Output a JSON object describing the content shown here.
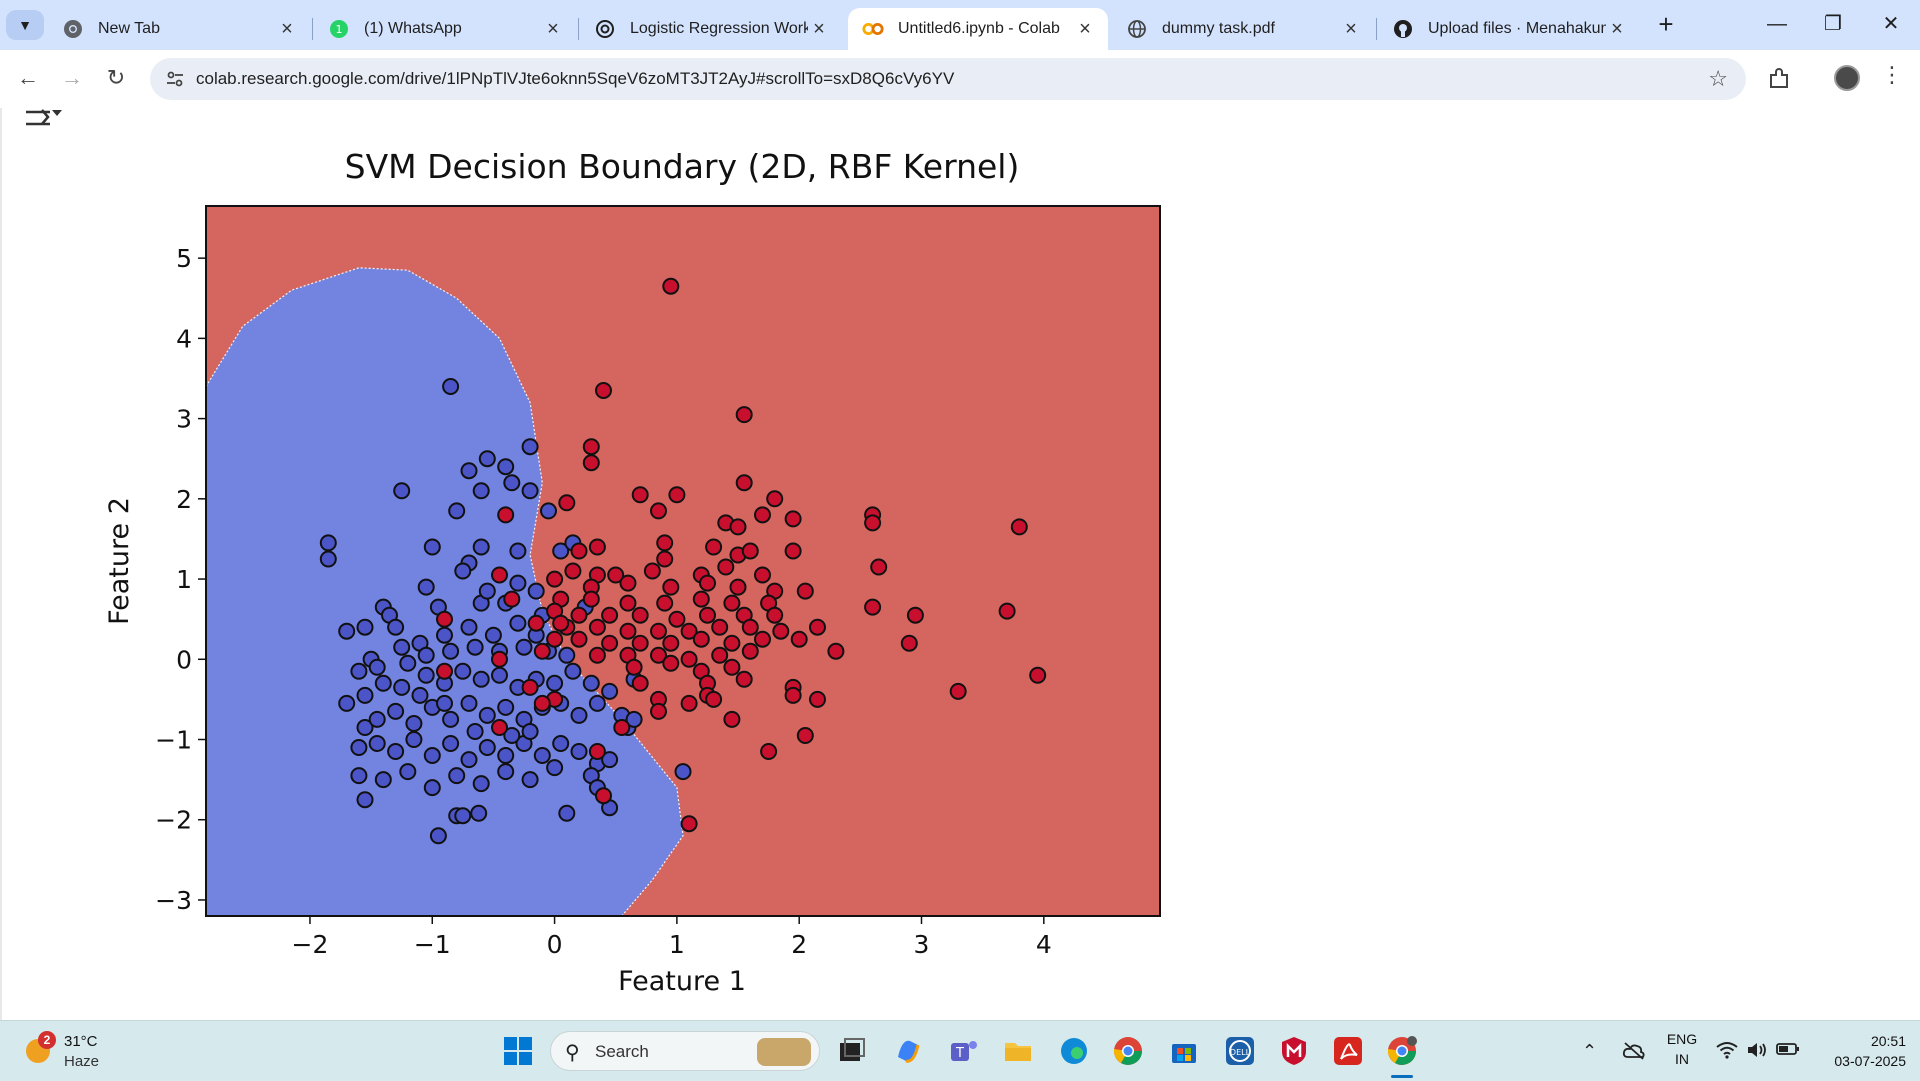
{
  "tabs": [
    {
      "title": "New Tab",
      "icon": "chrome-icon",
      "active": false
    },
    {
      "title": "(1) WhatsApp",
      "icon": "whatsapp-icon",
      "active": false
    },
    {
      "title": "Logistic Regression Workfl",
      "icon": "openai-icon",
      "active": false
    },
    {
      "title": "Untitled6.ipynb - Colab",
      "icon": "colab-icon",
      "active": true
    },
    {
      "title": "dummy task.pdf",
      "icon": "globe-icon",
      "active": false
    },
    {
      "title": "Upload files · Menahakuma",
      "icon": "github-icon",
      "active": false
    }
  ],
  "toolbar": {
    "url": "colab.research.google.com/drive/1lPNpTlVJte6oknn5SqeV6zoMT3JT2AyJ#scrollTo=sxD8Q6cVy6YV"
  },
  "chart_data": {
    "type": "scatter",
    "title": "SVM Decision Boundary (2D, RBF Kernel)",
    "xlabel": "Feature 1",
    "ylabel": "Feature 2",
    "xlim": [
      -2.85,
      4.95
    ],
    "ylim": [
      -3.2,
      5.65
    ],
    "xticks": [
      -2,
      -1,
      0,
      1,
      2,
      3,
      4
    ],
    "yticks": [
      -3,
      -2,
      -1,
      0,
      1,
      2,
      3,
      4,
      5
    ],
    "xtick_labels": [
      "−2",
      "−1",
      "0",
      "1",
      "2",
      "3",
      "4"
    ],
    "ytick_labels": [
      "−3",
      "−2",
      "−1",
      "0",
      "1",
      "2",
      "3",
      "4",
      "5"
    ],
    "background_regions": {
      "class_0": "#7384e0",
      "class_1": "#d5665f"
    },
    "boundary": [
      [
        -2.85,
        3.4
      ],
      [
        -2.55,
        4.15
      ],
      [
        -2.15,
        4.6
      ],
      [
        -1.6,
        4.88
      ],
      [
        -1.2,
        4.85
      ],
      [
        -0.8,
        4.5
      ],
      [
        -0.45,
        4.0
      ],
      [
        -0.2,
        3.2
      ],
      [
        -0.1,
        2.2
      ],
      [
        -0.2,
        1.3
      ],
      [
        -0.1,
        0.6
      ],
      [
        0.1,
        0.0
      ],
      [
        0.55,
        -0.75
      ],
      [
        1.0,
        -1.6
      ],
      [
        1.05,
        -2.2
      ],
      [
        0.8,
        -2.75
      ],
      [
        0.55,
        -3.2
      ]
    ],
    "boundary_bottom": [
      [
        -2.85,
        -3.0
      ],
      [
        -2.7,
        -3.2
      ]
    ],
    "series": [
      {
        "color": "#4b55c8",
        "points": [
          [
            -0.85,
            3.4
          ],
          [
            -1.25,
            2.1
          ],
          [
            -1.85,
            1.45
          ],
          [
            -1.85,
            1.25
          ],
          [
            -0.7,
            2.35
          ],
          [
            -0.55,
            2.5
          ],
          [
            -0.4,
            2.4
          ],
          [
            -0.2,
            2.65
          ],
          [
            -0.35,
            2.2
          ],
          [
            -0.2,
            2.1
          ],
          [
            -0.6,
            2.1
          ],
          [
            -0.8,
            1.85
          ],
          [
            -0.05,
            1.85
          ],
          [
            -0.6,
            1.4
          ],
          [
            -0.3,
            1.35
          ],
          [
            -1.0,
            1.4
          ],
          [
            -0.7,
            1.2
          ],
          [
            -0.75,
            1.1
          ],
          [
            0.05,
            1.35
          ],
          [
            -1.05,
            0.9
          ],
          [
            -1.4,
            0.65
          ],
          [
            -1.35,
            0.55
          ],
          [
            -1.7,
            0.35
          ],
          [
            -1.55,
            0.4
          ],
          [
            -1.3,
            0.4
          ],
          [
            -0.95,
            0.65
          ],
          [
            -0.6,
            0.7
          ],
          [
            -0.4,
            0.7
          ],
          [
            -0.3,
            0.45
          ],
          [
            -0.1,
            0.55
          ],
          [
            -0.15,
            0.3
          ],
          [
            -0.5,
            0.3
          ],
          [
            -0.7,
            0.4
          ],
          [
            -0.9,
            0.3
          ],
          [
            -1.1,
            0.2
          ],
          [
            -1.25,
            0.15
          ],
          [
            -1.5,
            0.0
          ],
          [
            -1.6,
            -0.15
          ],
          [
            -1.45,
            -0.1
          ],
          [
            -1.2,
            -0.05
          ],
          [
            -1.05,
            0.05
          ],
          [
            -0.85,
            0.1
          ],
          [
            -0.65,
            0.15
          ],
          [
            -0.45,
            0.1
          ],
          [
            -0.25,
            0.15
          ],
          [
            -0.05,
            0.1
          ],
          [
            0.1,
            0.05
          ],
          [
            -1.7,
            -0.55
          ],
          [
            -1.55,
            -0.45
          ],
          [
            -1.4,
            -0.3
          ],
          [
            -1.25,
            -0.35
          ],
          [
            -1.05,
            -0.2
          ],
          [
            -0.9,
            -0.3
          ],
          [
            -0.75,
            -0.15
          ],
          [
            -0.6,
            -0.25
          ],
          [
            -0.45,
            -0.2
          ],
          [
            -0.3,
            -0.35
          ],
          [
            -0.15,
            -0.25
          ],
          [
            0.0,
            -0.3
          ],
          [
            0.15,
            -0.15
          ],
          [
            0.3,
            -0.3
          ],
          [
            0.45,
            -0.4
          ],
          [
            -1.55,
            -0.85
          ],
          [
            -1.45,
            -0.75
          ],
          [
            -1.3,
            -0.65
          ],
          [
            -1.15,
            -0.8
          ],
          [
            -1.0,
            -0.6
          ],
          [
            -0.85,
            -0.75
          ],
          [
            -0.7,
            -0.55
          ],
          [
            -0.55,
            -0.7
          ],
          [
            -0.4,
            -0.6
          ],
          [
            -0.25,
            -0.75
          ],
          [
            -0.1,
            -0.6
          ],
          [
            0.05,
            -0.55
          ],
          [
            0.2,
            -0.7
          ],
          [
            0.35,
            -0.55
          ],
          [
            0.55,
            -0.7
          ],
          [
            -1.6,
            -1.1
          ],
          [
            -1.45,
            -1.05
          ],
          [
            -1.3,
            -1.15
          ],
          [
            -1.15,
            -1.0
          ],
          [
            -1.0,
            -1.2
          ],
          [
            -0.85,
            -1.05
          ],
          [
            -0.7,
            -1.25
          ],
          [
            -0.55,
            -1.1
          ],
          [
            -0.4,
            -1.2
          ],
          [
            -0.25,
            -1.05
          ],
          [
            -0.1,
            -1.2
          ],
          [
            0.05,
            -1.05
          ],
          [
            0.2,
            -1.15
          ],
          [
            0.35,
            -1.3
          ],
          [
            0.6,
            -0.85
          ],
          [
            -1.6,
            -1.45
          ],
          [
            -1.4,
            -1.5
          ],
          [
            -1.2,
            -1.4
          ],
          [
            -1.0,
            -1.6
          ],
          [
            -0.8,
            -1.45
          ],
          [
            -0.6,
            -1.55
          ],
          [
            -0.4,
            -1.4
          ],
          [
            -0.2,
            -1.5
          ],
          [
            0.0,
            -1.35
          ],
          [
            0.3,
            -1.45
          ],
          [
            0.45,
            -1.25
          ],
          [
            0.65,
            -0.75
          ],
          [
            1.05,
            -1.4
          ],
          [
            -1.55,
            -1.75
          ],
          [
            -0.95,
            -2.2
          ],
          [
            -0.8,
            -1.95
          ],
          [
            -0.75,
            -1.95
          ],
          [
            -0.62,
            -1.92
          ],
          [
            0.1,
            -1.92
          ],
          [
            0.45,
            -1.85
          ],
          [
            0.35,
            -1.6
          ],
          [
            0.65,
            -0.25
          ],
          [
            -0.2,
            -0.9
          ],
          [
            -0.65,
            -0.9
          ],
          [
            -0.35,
            -0.95
          ],
          [
            -0.9,
            -0.55
          ],
          [
            -1.1,
            -0.45
          ],
          [
            0.25,
            0.65
          ],
          [
            0.15,
            1.45
          ],
          [
            -0.55,
            0.85
          ],
          [
            -0.3,
            0.95
          ],
          [
            -0.15,
            0.85
          ]
        ]
      },
      {
        "color": "#c8102e",
        "points": [
          [
            0.95,
            4.65
          ],
          [
            0.4,
            3.35
          ],
          [
            1.55,
            3.05
          ],
          [
            0.3,
            2.65
          ],
          [
            0.3,
            2.45
          ],
          [
            1.55,
            2.2
          ],
          [
            0.7,
            2.05
          ],
          [
            1.0,
            2.05
          ],
          [
            1.8,
            2.0
          ],
          [
            0.1,
            1.95
          ],
          [
            0.85,
            1.85
          ],
          [
            1.7,
            1.8
          ],
          [
            1.95,
            1.75
          ],
          [
            2.6,
            1.8
          ],
          [
            2.6,
            1.7
          ],
          [
            1.4,
            1.7
          ],
          [
            1.5,
            1.65
          ],
          [
            3.8,
            1.65
          ],
          [
            0.9,
            1.45
          ],
          [
            1.3,
            1.4
          ],
          [
            0.35,
            1.4
          ],
          [
            0.2,
            1.35
          ],
          [
            0.9,
            1.25
          ],
          [
            1.5,
            1.3
          ],
          [
            1.6,
            1.35
          ],
          [
            1.95,
            1.35
          ],
          [
            2.65,
            1.15
          ],
          [
            0.15,
            1.1
          ],
          [
            0.35,
            1.05
          ],
          [
            0.5,
            1.05
          ],
          [
            0.8,
            1.1
          ],
          [
            1.2,
            1.05
          ],
          [
            1.4,
            1.15
          ],
          [
            1.7,
            1.05
          ],
          [
            0.0,
            1.0
          ],
          [
            0.3,
            0.9
          ],
          [
            0.6,
            0.95
          ],
          [
            0.95,
            0.9
          ],
          [
            1.25,
            0.95
          ],
          [
            1.5,
            0.9
          ],
          [
            1.8,
            0.85
          ],
          [
            2.05,
            0.85
          ],
          [
            -0.45,
            1.05
          ],
          [
            0.05,
            0.75
          ],
          [
            0.3,
            0.75
          ],
          [
            0.6,
            0.7
          ],
          [
            0.9,
            0.7
          ],
          [
            1.2,
            0.75
          ],
          [
            1.45,
            0.7
          ],
          [
            1.75,
            0.7
          ],
          [
            2.6,
            0.65
          ],
          [
            3.7,
            0.6
          ],
          [
            2.95,
            0.55
          ],
          [
            0.0,
            0.6
          ],
          [
            0.2,
            0.55
          ],
          [
            0.45,
            0.55
          ],
          [
            0.7,
            0.55
          ],
          [
            1.0,
            0.5
          ],
          [
            1.25,
            0.55
          ],
          [
            1.55,
            0.55
          ],
          [
            1.8,
            0.55
          ],
          [
            0.1,
            0.4
          ],
          [
            0.35,
            0.4
          ],
          [
            0.6,
            0.35
          ],
          [
            0.85,
            0.35
          ],
          [
            1.1,
            0.35
          ],
          [
            1.35,
            0.4
          ],
          [
            1.6,
            0.4
          ],
          [
            1.85,
            0.35
          ],
          [
            2.15,
            0.4
          ],
          [
            0.2,
            0.25
          ],
          [
            0.45,
            0.2
          ],
          [
            0.7,
            0.2
          ],
          [
            0.95,
            0.2
          ],
          [
            1.2,
            0.25
          ],
          [
            1.45,
            0.2
          ],
          [
            1.7,
            0.25
          ],
          [
            2.0,
            0.25
          ],
          [
            2.9,
            0.2
          ],
          [
            0.35,
            0.05
          ],
          [
            0.6,
            0.05
          ],
          [
            0.85,
            0.05
          ],
          [
            1.1,
            0.0
          ],
          [
            1.35,
            0.05
          ],
          [
            1.6,
            0.1
          ],
          [
            2.3,
            0.1
          ],
          [
            0.65,
            -0.1
          ],
          [
            0.95,
            -0.05
          ],
          [
            1.2,
            -0.15
          ],
          [
            1.45,
            -0.1
          ],
          [
            1.55,
            -0.25
          ],
          [
            0.7,
            -0.3
          ],
          [
            1.25,
            -0.3
          ],
          [
            1.95,
            -0.35
          ],
          [
            0.85,
            -0.5
          ],
          [
            1.25,
            -0.45
          ],
          [
            1.3,
            -0.5
          ],
          [
            1.1,
            -0.55
          ],
          [
            2.15,
            -0.5
          ],
          [
            0.85,
            -0.65
          ],
          [
            1.95,
            -0.45
          ],
          [
            3.3,
            -0.4
          ],
          [
            3.95,
            -0.2
          ],
          [
            1.45,
            -0.75
          ],
          [
            0.55,
            -0.85
          ],
          [
            2.05,
            -0.95
          ],
          [
            1.75,
            -1.15
          ],
          [
            0.35,
            -1.15
          ],
          [
            0.4,
            -1.7
          ],
          [
            1.1,
            -2.05
          ],
          [
            -0.4,
            1.8
          ],
          [
            -0.9,
            0.5
          ],
          [
            -0.9,
            -0.15
          ],
          [
            -0.1,
            0.1
          ],
          [
            -0.45,
            0.0
          ],
          [
            -0.2,
            -0.35
          ],
          [
            0.0,
            -0.5
          ],
          [
            -0.15,
            0.45
          ],
          [
            -0.35,
            0.75
          ],
          [
            0.0,
            0.25
          ],
          [
            -0.1,
            -0.55
          ],
          [
            -0.45,
            -0.85
          ],
          [
            0.05,
            0.45
          ]
        ]
      }
    ]
  },
  "taskbar": {
    "weather_temp": "31°C",
    "weather_cond": "Haze",
    "weather_badge": "2",
    "search_label": "Search",
    "lang_top": "ENG",
    "lang_bottom": "IN",
    "time": "20:51",
    "date": "03-07-2025"
  }
}
